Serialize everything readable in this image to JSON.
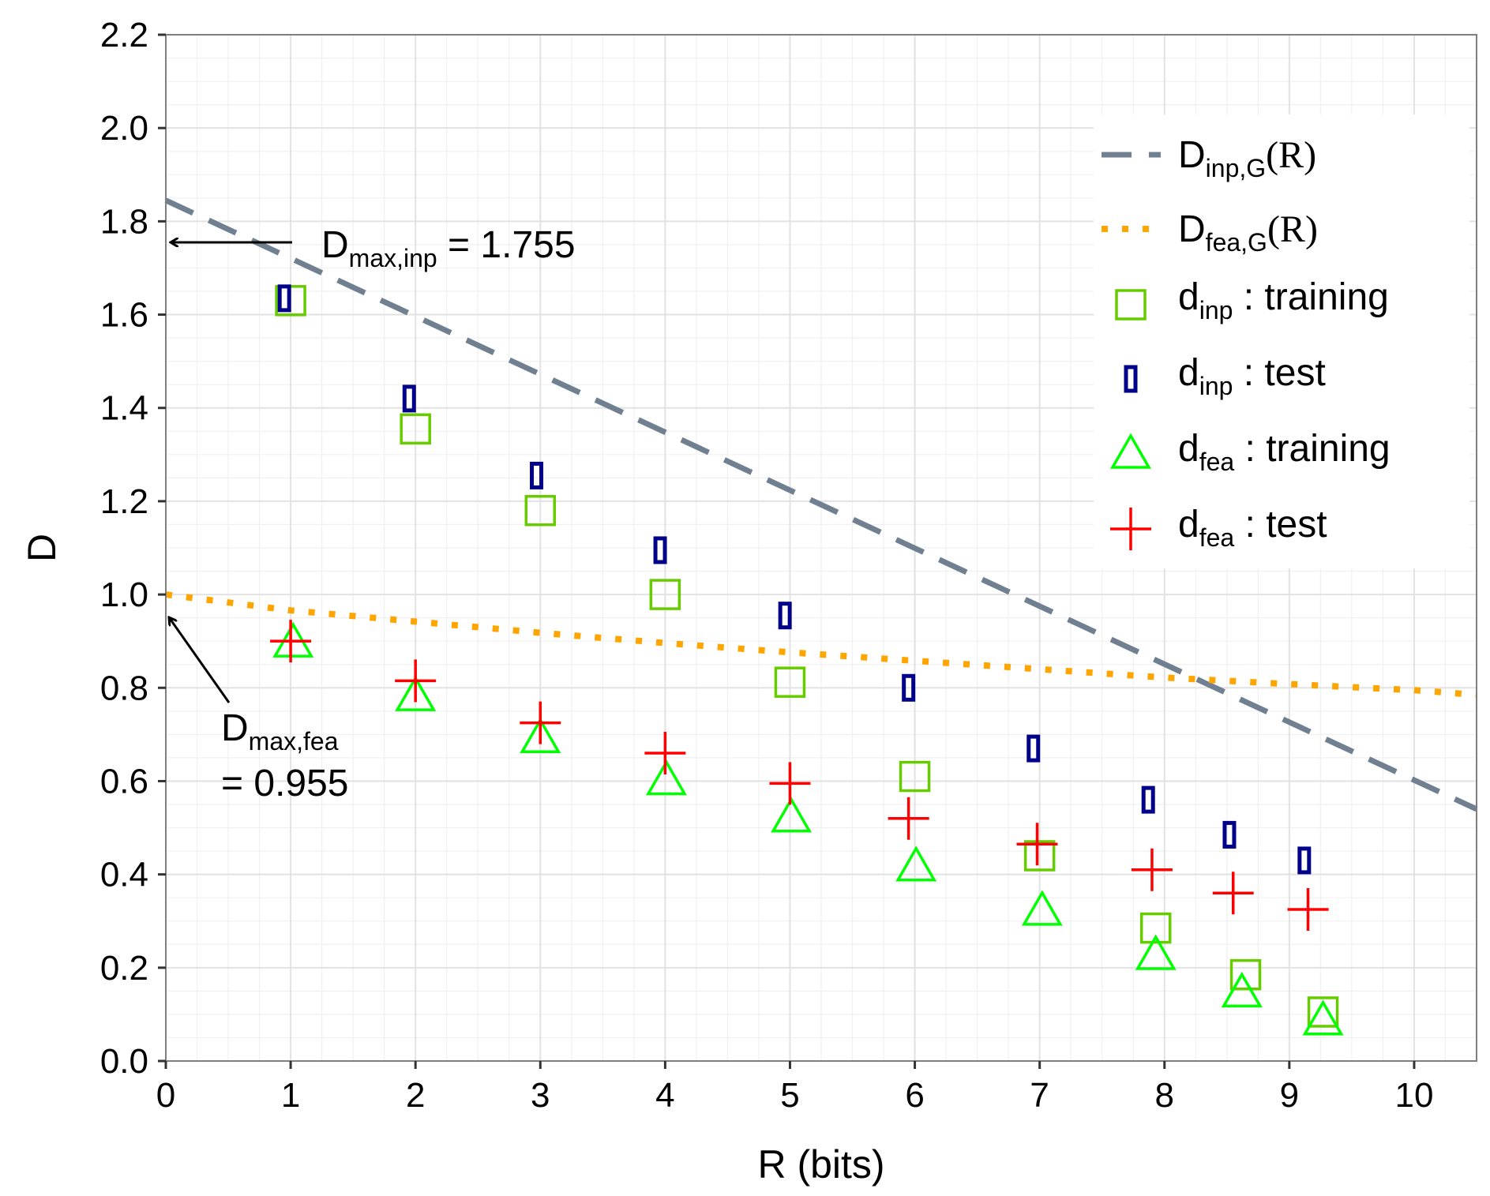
{
  "chart_data": {
    "type": "scatter",
    "title": "",
    "xlabel": "R (bits)",
    "ylabel": "D",
    "xlim": [
      0,
      10.5
    ],
    "ylim": [
      0,
      2.2
    ],
    "x_ticks": [
      "0",
      "1",
      "2",
      "3",
      "4",
      "5",
      "6",
      "7",
      "8",
      "9",
      "10"
    ],
    "y_ticks": [
      "0.0",
      "0.2",
      "0.4",
      "0.6",
      "0.8",
      "1.0",
      "1.2",
      "1.4",
      "1.6",
      "1.8",
      "2.0",
      "2.2"
    ],
    "grid": true,
    "legend_position": "top-right",
    "legend": [
      {
        "main": "D",
        "sub": "inp,G",
        "tail": "(R)"
      },
      {
        "main": "D",
        "sub": "fea,G",
        "tail": "(R)"
      },
      {
        "main": "d",
        "sub": "inp",
        "tail": " : training"
      },
      {
        "main": "d",
        "sub": "inp",
        "tail": " : test"
      },
      {
        "main": "d",
        "sub": "fea",
        "tail": " : training"
      },
      {
        "main": "d",
        "sub": "fea",
        "tail": " : test"
      }
    ],
    "series": [
      {
        "name": "D_inp,G(R)",
        "kind": "line",
        "style": "dashed",
        "color": "#708090",
        "x": [
          0,
          10.5
        ],
        "y": [
          1.845,
          0.54
        ]
      },
      {
        "name": "D_fea,G(R)",
        "kind": "line",
        "style": "dotted",
        "color": "#FFA500",
        "x": [
          0,
          1,
          2,
          3,
          4,
          5,
          6,
          7,
          8,
          9,
          10,
          10.5
        ],
        "y": [
          1.0,
          0.966,
          0.942,
          0.918,
          0.896,
          0.876,
          0.858,
          0.84,
          0.822,
          0.808,
          0.795,
          0.785
        ]
      },
      {
        "name": "d_inp : training",
        "kind": "points",
        "marker": "square",
        "color": "#66CC00",
        "x": [
          1.0,
          2.0,
          3.0,
          4.0,
          5.0,
          6.0,
          7.0,
          7.93,
          8.65,
          9.27
        ],
        "y": [
          1.63,
          1.355,
          1.18,
          1.0,
          0.812,
          0.61,
          0.44,
          0.285,
          0.185,
          0.105
        ]
      },
      {
        "name": "d_inp : test",
        "kind": "points",
        "marker": "thin-rect",
        "color": "#00008B",
        "x": [
          0.95,
          1.95,
          2.97,
          3.96,
          4.96,
          5.95,
          6.95,
          7.87,
          8.52,
          9.12
        ],
        "y": [
          1.635,
          1.42,
          1.255,
          1.095,
          0.955,
          0.8,
          0.67,
          0.56,
          0.485,
          0.43
        ]
      },
      {
        "name": "d_fea : training",
        "kind": "points",
        "marker": "triangle",
        "color": "#00FF00",
        "x": [
          1.02,
          2.0,
          3.0,
          4.01,
          5.01,
          6.01,
          7.02,
          7.93,
          8.62,
          9.27
        ],
        "y": [
          0.895,
          0.78,
          0.69,
          0.6,
          0.52,
          0.415,
          0.32,
          0.225,
          0.145,
          0.085
        ]
      },
      {
        "name": "d_fea : test",
        "kind": "points",
        "marker": "plus",
        "color": "#FF0000",
        "x": [
          1.0,
          2.0,
          3.0,
          4.0,
          5.0,
          5.95,
          6.98,
          7.9,
          8.55,
          9.15
        ],
        "y": [
          0.9,
          0.815,
          0.725,
          0.66,
          0.595,
          0.52,
          0.465,
          0.41,
          0.36,
          0.325
        ]
      }
    ],
    "annotations": [
      {
        "main": "D",
        "sub": "max,inp",
        "tail": " = 1.755",
        "points_to": {
          "x": 0,
          "y": 1.755
        }
      },
      {
        "main": "D",
        "sub": "max,fea",
        "line2": "= 0.955",
        "points_to": {
          "x": 0,
          "y": 0.955
        }
      }
    ]
  }
}
